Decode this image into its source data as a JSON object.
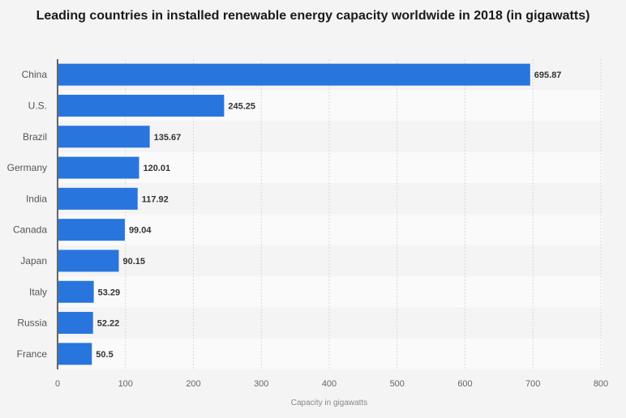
{
  "chart_data": {
    "type": "bar",
    "orientation": "horizontal",
    "title": "Leading countries in installed renewable energy capacity worldwide in 2018 (in gigawatts)",
    "xlabel": "Capacity in gigawatts",
    "ylabel": "",
    "categories": [
      "China",
      "U.S.",
      "Brazil",
      "Germany",
      "India",
      "Canada",
      "Japan",
      "Italy",
      "Russia",
      "France"
    ],
    "values": [
      695.87,
      245.25,
      135.67,
      120.01,
      117.92,
      99.04,
      90.15,
      53.29,
      52.22,
      50.5
    ],
    "value_labels": [
      "695.87",
      "245.25",
      "135.67",
      "120.01",
      "117.92",
      "99.04",
      "90.15",
      "53.29",
      "52.22",
      "50.5"
    ],
    "xlim": [
      0,
      800
    ],
    "xticks": [
      0,
      100,
      200,
      300,
      400,
      500,
      600,
      700,
      800
    ],
    "grid": true,
    "bar_color": "#2876dd"
  }
}
